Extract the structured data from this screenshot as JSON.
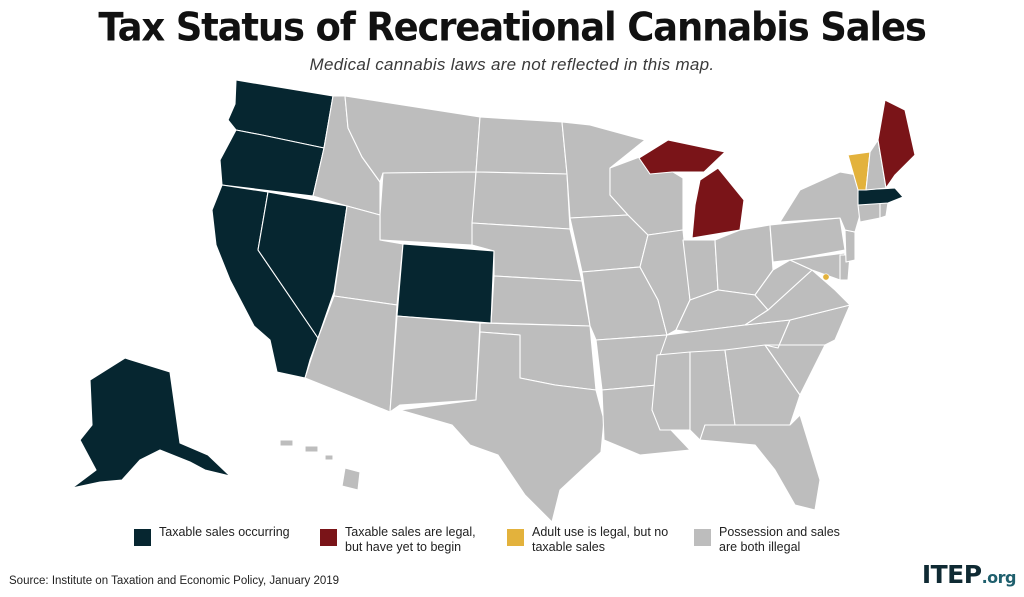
{
  "title": "Tax Status of Recreational Cannabis Sales",
  "subtitle": "Medical cannabis laws are not reflected in this map.",
  "colors": {
    "taxable_occurring": "#062630",
    "legal_not_begun": "#7a1418",
    "adult_use_no_sales": "#e3b23c",
    "illegal": "#bdbdbd",
    "border": "#ffffff"
  },
  "legend": [
    {
      "key": "taxable_occurring",
      "label": "Taxable sales occurring"
    },
    {
      "key": "legal_not_begun",
      "label": "Taxable sales are legal,\nbut have yet to begin"
    },
    {
      "key": "adult_use_no_sales",
      "label": "Adult use is legal, but no\ntaxable sales"
    },
    {
      "key": "illegal",
      "label": "Possession and sales\nare both illegal"
    }
  ],
  "states": {
    "WA": "taxable_occurring",
    "OR": "taxable_occurring",
    "CA": "taxable_occurring",
    "NV": "taxable_occurring",
    "CO": "taxable_occurring",
    "AK": "taxable_occurring",
    "MA": "taxable_occurring",
    "MI": "legal_not_begun",
    "ME": "legal_not_begun",
    "VT": "adult_use_no_sales",
    "DC": "adult_use_no_sales",
    "ID": "illegal",
    "MT": "illegal",
    "WY": "illegal",
    "UT": "illegal",
    "AZ": "illegal",
    "NM": "illegal",
    "ND": "illegal",
    "SD": "illegal",
    "NE": "illegal",
    "KS": "illegal",
    "OK": "illegal",
    "TX": "illegal",
    "MN": "illegal",
    "IA": "illegal",
    "MO": "illegal",
    "AR": "illegal",
    "LA": "illegal",
    "WI": "illegal",
    "IL": "illegal",
    "MS": "illegal",
    "IN": "illegal",
    "OH": "illegal",
    "KY": "illegal",
    "TN": "illegal",
    "AL": "illegal",
    "GA": "illegal",
    "FL": "illegal",
    "SC": "illegal",
    "NC": "illegal",
    "VA": "illegal",
    "WV": "illegal",
    "MD": "illegal",
    "DE": "illegal",
    "PA": "illegal",
    "NJ": "illegal",
    "NY": "illegal",
    "CT": "illegal",
    "RI": "illegal",
    "NH": "illegal",
    "HI": "illegal"
  },
  "footer": {
    "source": "Source: Institute on Taxation and Economic Policy, January 2019",
    "logo_main": "ITEP",
    "logo_suffix": ".org"
  }
}
